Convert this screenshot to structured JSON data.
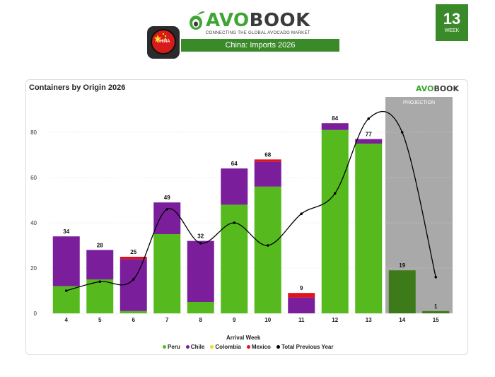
{
  "header": {
    "logo_text_green": "AVO",
    "logo_text_dark": "BOOK",
    "logo_tagline": "CONNECTING THE GLOBAL AVOCADO MARKET",
    "flag_label": "CHINA",
    "banner_country": "China",
    "banner_rest": ": Imports 2026",
    "week_number": "13",
    "week_label": "WEEK"
  },
  "colors": {
    "Peru": "#56ba1e",
    "Chile": "#7a1e9c",
    "Colombia": "#f5d623",
    "Mexico": "#e0121a",
    "Total Previous Year": "#000000",
    "projection_bar": "#3c7a1a",
    "projection_band": "#a9a9a9"
  },
  "chart_data": {
    "type": "bar",
    "title": "Containers by Origin 2026",
    "xlabel": "Arrival Week",
    "ylabel": "",
    "ylim": [
      0,
      90
    ],
    "yticks": [
      0,
      20,
      40,
      60,
      80
    ],
    "categories": [
      "4",
      "5",
      "6",
      "7",
      "8",
      "9",
      "10",
      "11",
      "12",
      "13",
      "14",
      "15"
    ],
    "series": [
      {
        "name": "Peru",
        "type": "bar",
        "values": [
          12,
          15,
          1,
          35,
          5,
          48,
          56,
          0,
          81,
          75,
          19,
          1
        ]
      },
      {
        "name": "Chile",
        "type": "bar",
        "values": [
          22,
          13,
          23,
          14,
          27,
          16,
          11,
          7,
          3,
          2,
          0,
          0
        ]
      },
      {
        "name": "Colombia",
        "type": "bar",
        "values": [
          0,
          0,
          0,
          0,
          0,
          0,
          0,
          0,
          0,
          0,
          0,
          0
        ]
      },
      {
        "name": "Mexico",
        "type": "bar",
        "values": [
          0,
          0,
          1,
          0,
          0,
          0,
          1,
          2,
          0,
          0,
          0,
          0
        ]
      },
      {
        "name": "Total Previous Year",
        "type": "line",
        "values": [
          10,
          14,
          15,
          46,
          31,
          40,
          30,
          44,
          53,
          86,
          80,
          16
        ]
      }
    ],
    "totals": [
      34,
      28,
      25,
      49,
      32,
      64,
      68,
      9,
      84,
      77,
      19,
      1
    ],
    "projection": {
      "label": "PROJECTION",
      "categories": [
        "14",
        "15"
      ]
    },
    "legend_position": "bottom",
    "grid": true,
    "mini_logo_green": "AVO",
    "mini_logo_dark": "BOOK"
  }
}
